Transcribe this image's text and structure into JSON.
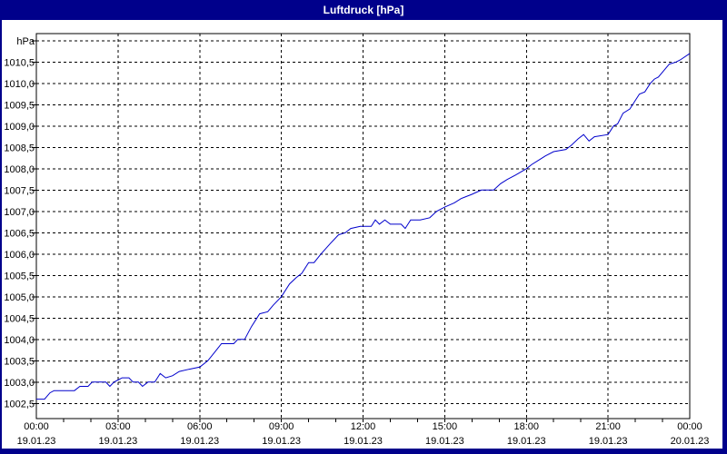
{
  "window": {
    "title": "Luftdruck [hPa]"
  },
  "chart_data": {
    "type": "line",
    "title": "Luftdruck [hPa]",
    "unit_label": "hPa",
    "grid": "dashed",
    "legend": "none",
    "colors": {
      "titlebar": "#00008b",
      "window_frame": "#00008b",
      "background": "#ffffff",
      "grid": "#000000",
      "text": "#000000",
      "line": "#0000cc"
    },
    "y_axis": {
      "min": 1002.5,
      "max": 1011.0,
      "step": 0.5,
      "ticks": [
        [
          1010.5,
          "1010,5"
        ],
        [
          1010.0,
          "1010,0"
        ],
        [
          1009.5,
          "1009,5"
        ],
        [
          1009.0,
          "1009,0"
        ],
        [
          1008.5,
          "1008,5"
        ],
        [
          1008.0,
          "1008,0"
        ],
        [
          1007.5,
          "1007,5"
        ],
        [
          1007.0,
          "1007,0"
        ],
        [
          1006.5,
          "1006,5"
        ],
        [
          1006.0,
          "1006,0"
        ],
        [
          1005.5,
          "1005,5"
        ],
        [
          1005.0,
          "1005,0"
        ],
        [
          1004.5,
          "1004,5"
        ],
        [
          1004.0,
          "1004,0"
        ],
        [
          1003.5,
          "1003,5"
        ],
        [
          1003.0,
          "1003,0"
        ],
        [
          1002.5,
          "1002,5"
        ]
      ]
    },
    "x_axis": {
      "start_hour": 0,
      "end_hour": 24,
      "major_step_hours": 3,
      "minor_step_hours": 1,
      "ticks": [
        {
          "hour": 0,
          "time": "00:00",
          "date": "19.01.23"
        },
        {
          "hour": 3,
          "time": "03:00",
          "date": "19.01.23"
        },
        {
          "hour": 6,
          "time": "06:00",
          "date": "19.01.23"
        },
        {
          "hour": 9,
          "time": "09:00",
          "date": "19.01.23"
        },
        {
          "hour": 12,
          "time": "12:00",
          "date": "19.01.23"
        },
        {
          "hour": 15,
          "time": "15:00",
          "date": "19.01.23"
        },
        {
          "hour": 18,
          "time": "18:00",
          "date": "19.01.23"
        },
        {
          "hour": 21,
          "time": "21:00",
          "date": "19.01.23"
        },
        {
          "hour": 24,
          "time": "00:00",
          "date": "20.01.23"
        }
      ]
    },
    "series": [
      {
        "name": "Luftdruck",
        "color": "#0000cc",
        "points": [
          [
            0.0,
            1002.6
          ],
          [
            0.3,
            1002.6
          ],
          [
            0.5,
            1002.75
          ],
          [
            0.65,
            1002.8
          ],
          [
            1.4,
            1002.8
          ],
          [
            1.6,
            1002.9
          ],
          [
            1.9,
            1002.9
          ],
          [
            2.05,
            1003.0
          ],
          [
            2.55,
            1003.0
          ],
          [
            2.7,
            1002.9
          ],
          [
            2.85,
            1003.0
          ],
          [
            3.0,
            1003.05
          ],
          [
            3.15,
            1003.1
          ],
          [
            3.4,
            1003.1
          ],
          [
            3.55,
            1003.0
          ],
          [
            3.75,
            1003.0
          ],
          [
            3.9,
            1002.9
          ],
          [
            4.1,
            1003.0
          ],
          [
            4.35,
            1003.0
          ],
          [
            4.55,
            1003.2
          ],
          [
            4.75,
            1003.1
          ],
          [
            5.0,
            1003.15
          ],
          [
            5.25,
            1003.25
          ],
          [
            5.6,
            1003.3
          ],
          [
            6.0,
            1003.35
          ],
          [
            6.3,
            1003.5
          ],
          [
            6.55,
            1003.7
          ],
          [
            6.8,
            1003.9
          ],
          [
            7.25,
            1003.9
          ],
          [
            7.4,
            1004.0
          ],
          [
            7.65,
            1004.0
          ],
          [
            7.9,
            1004.3
          ],
          [
            8.1,
            1004.5
          ],
          [
            8.2,
            1004.6
          ],
          [
            8.5,
            1004.65
          ],
          [
            8.7,
            1004.8
          ],
          [
            9.0,
            1005.0
          ],
          [
            9.3,
            1005.3
          ],
          [
            9.55,
            1005.45
          ],
          [
            9.75,
            1005.55
          ],
          [
            10.0,
            1005.8
          ],
          [
            10.2,
            1005.8
          ],
          [
            10.45,
            1006.0
          ],
          [
            10.8,
            1006.25
          ],
          [
            11.1,
            1006.45
          ],
          [
            11.35,
            1006.5
          ],
          [
            11.55,
            1006.6
          ],
          [
            11.9,
            1006.65
          ],
          [
            12.3,
            1006.65
          ],
          [
            12.45,
            1006.8
          ],
          [
            12.6,
            1006.7
          ],
          [
            12.8,
            1006.8
          ],
          [
            13.0,
            1006.7
          ],
          [
            13.4,
            1006.7
          ],
          [
            13.55,
            1006.6
          ],
          [
            13.75,
            1006.8
          ],
          [
            14.1,
            1006.8
          ],
          [
            14.45,
            1006.85
          ],
          [
            14.7,
            1007.0
          ],
          [
            15.0,
            1007.1
          ],
          [
            15.35,
            1007.2
          ],
          [
            15.6,
            1007.3
          ],
          [
            16.0,
            1007.4
          ],
          [
            16.35,
            1007.5
          ],
          [
            16.8,
            1007.5
          ],
          [
            17.05,
            1007.65
          ],
          [
            17.3,
            1007.75
          ],
          [
            17.6,
            1007.85
          ],
          [
            18.0,
            1008.0
          ],
          [
            18.2,
            1008.1
          ],
          [
            18.45,
            1008.2
          ],
          [
            18.7,
            1008.3
          ],
          [
            19.0,
            1008.4
          ],
          [
            19.45,
            1008.45
          ],
          [
            19.65,
            1008.55
          ],
          [
            19.9,
            1008.7
          ],
          [
            20.1,
            1008.8
          ],
          [
            20.3,
            1008.65
          ],
          [
            20.5,
            1008.75
          ],
          [
            21.0,
            1008.8
          ],
          [
            21.2,
            1009.0
          ],
          [
            21.35,
            1009.05
          ],
          [
            21.55,
            1009.3
          ],
          [
            21.8,
            1009.4
          ],
          [
            22.0,
            1009.6
          ],
          [
            22.15,
            1009.75
          ],
          [
            22.35,
            1009.8
          ],
          [
            22.55,
            1010.0
          ],
          [
            22.7,
            1010.1
          ],
          [
            22.85,
            1010.15
          ],
          [
            23.05,
            1010.3
          ],
          [
            23.25,
            1010.45
          ],
          [
            23.5,
            1010.5
          ],
          [
            23.65,
            1010.55
          ],
          [
            24.0,
            1010.7
          ]
        ]
      }
    ]
  }
}
